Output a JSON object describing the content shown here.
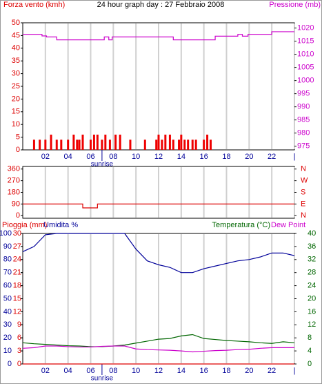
{
  "chart_data": [
    {
      "type": "line",
      "title": "24 hour graph day : 27 Febbraio 2008",
      "xlim": [
        0,
        24
      ],
      "xticks": [
        {
          "value": 2,
          "label": "02"
        },
        {
          "value": 4,
          "label": "04"
        },
        {
          "value": 6,
          "label": "06"
        },
        {
          "value": 8,
          "label": "08"
        },
        {
          "value": 10,
          "label": "10"
        },
        {
          "value": 12,
          "label": "12"
        },
        {
          "value": 14,
          "label": "14"
        },
        {
          "value": 16,
          "label": "16"
        },
        {
          "value": 18,
          "label": "18"
        },
        {
          "value": 20,
          "label": "20"
        },
        {
          "value": 22,
          "label": "22"
        },
        {
          "value": 24,
          "label": "|"
        }
      ],
      "annotation": {
        "text": "sunrise",
        "x": 7
      },
      "axes": [
        {
          "label": "Forza vento (kmh)",
          "color": "#dd0000",
          "side": "left",
          "lim": [
            0,
            50
          ],
          "ticks": [
            0,
            5,
            10,
            15,
            20,
            25,
            30,
            35,
            40,
            45,
            50
          ]
        },
        {
          "label": "Pressione (mb)",
          "color": "#cc00cc",
          "side": "right",
          "lim": [
            973.6,
            1022
          ],
          "ticks": [
            975,
            980,
            985,
            990,
            995,
            1000,
            1005,
            1010,
            1015,
            1020
          ]
        }
      ],
      "series": [
        {
          "type": "bar",
          "axis": 0,
          "color": "#ee0000",
          "x": [
            1,
            1.5,
            2,
            2.5,
            3,
            3.4,
            4,
            4.5,
            4.8,
            5,
            5.3,
            6,
            6.3,
            6.6,
            7,
            7.3,
            7.7,
            8.2,
            8.6,
            9.5,
            10.8,
            11.8,
            12,
            12.3,
            12.6,
            13,
            13.3,
            13.8,
            14,
            14.3,
            14.6,
            15,
            15.3,
            16,
            16.3,
            16.6
          ],
          "values": [
            4,
            4,
            4,
            6,
            4,
            4,
            4,
            6,
            4,
            4,
            6,
            4,
            6,
            6,
            4,
            6,
            4,
            6,
            6,
            4,
            4,
            4,
            6,
            4,
            6,
            6,
            4,
            4,
            6,
            4,
            4,
            4,
            4,
            4,
            6,
            4
          ]
        },
        {
          "type": "step",
          "axis": 1,
          "color": "#cc00cc",
          "x": [
            0,
            1.7,
            2.1,
            3,
            7.2,
            7.6,
            7.9,
            13.3,
            17,
            19,
            19.4,
            19.9,
            22,
            24
          ],
          "values": [
            1017.6,
            1017.0,
            1016.6,
            1015.5,
            1016.6,
            1015.5,
            1016.6,
            1015.5,
            1016.9,
            1017.6,
            1016.9,
            1017.6,
            1018.6,
            1018.6
          ]
        }
      ]
    },
    {
      "type": "line",
      "xlim": [
        0,
        24
      ],
      "xticks": [
        2,
        4,
        6,
        8,
        10,
        12,
        14,
        16,
        18,
        20,
        22,
        24
      ],
      "axes": [
        {
          "color": "#dd0000",
          "side": "left",
          "lim": [
            -20,
            380
          ],
          "ticks": [
            0,
            90,
            180,
            270,
            360
          ]
        },
        {
          "color": "#dd0000",
          "side": "right",
          "lim": [
            -20,
            380
          ],
          "ticks": [
            {
              "value": 0,
              "label": "N"
            },
            {
              "value": 90,
              "label": "E"
            },
            {
              "value": 180,
              "label": "S"
            },
            {
              "value": 270,
              "label": "W"
            },
            {
              "value": 360,
              "label": "N"
            }
          ]
        }
      ],
      "series": [
        {
          "type": "step",
          "axis": 0,
          "color": "#dd0000",
          "x": [
            0,
            5.3,
            6.6,
            24
          ],
          "values": [
            90,
            60,
            90,
            90
          ]
        }
      ]
    },
    {
      "type": "line",
      "xlim": [
        0,
        24
      ],
      "xticks": [
        {
          "value": 2,
          "label": "02"
        },
        {
          "value": 4,
          "label": "04"
        },
        {
          "value": 6,
          "label": "06"
        },
        {
          "value": 8,
          "label": "08"
        },
        {
          "value": 10,
          "label": "10"
        },
        {
          "value": 12,
          "label": "12"
        },
        {
          "value": 14,
          "label": "14"
        },
        {
          "value": 16,
          "label": "16"
        },
        {
          "value": 18,
          "label": "18"
        },
        {
          "value": 20,
          "label": "20"
        },
        {
          "value": 22,
          "label": "22"
        },
        {
          "value": 24,
          "label": "|"
        }
      ],
      "annotation": {
        "text": "sunrise",
        "x": 7
      },
      "axes": [
        {
          "label": "Pioggia (mm)",
          "color": "#dd0000",
          "side": "left",
          "lim": [
            0,
            30
          ],
          "ticks": [
            0,
            3,
            6,
            9,
            12,
            15,
            18,
            21,
            24,
            27,
            30
          ]
        },
        {
          "label": "Umidita %",
          "color": "#000099",
          "side": "left",
          "lim": [
            0,
            100
          ],
          "ticks": [
            0,
            10,
            20,
            30,
            40,
            50,
            60,
            70,
            80,
            90,
            100
          ]
        },
        {
          "label": "Temperatura (°C)",
          "color": "#006600",
          "side": "right",
          "lim": [
            0,
            40
          ],
          "ticks": [
            0,
            4,
            8,
            12,
            16,
            20,
            24,
            28,
            32,
            36,
            40
          ]
        }
      ],
      "x": [
        0,
        1,
        2,
        3,
        4,
        5,
        6,
        7,
        8,
        9,
        10,
        11,
        12,
        13,
        14,
        15,
        16,
        17,
        18,
        19,
        20,
        21,
        22,
        23,
        24
      ],
      "series": [
        {
          "type": "line",
          "axis": 1,
          "color": "#000099",
          "values": [
            86,
            90,
            99,
            100,
            100,
            100,
            100,
            100,
            100,
            100,
            88,
            79,
            76,
            74,
            70,
            70,
            73,
            75,
            77,
            79,
            80,
            82,
            85,
            85,
            83
          ]
        },
        {
          "type": "line",
          "axis": 2,
          "color": "#006600",
          "values": [
            6.5,
            6.2,
            6.0,
            5.8,
            5.6,
            5.5,
            5.3,
            5.3,
            5.5,
            5.8,
            6.4,
            7.0,
            7.6,
            7.8,
            8.6,
            9.0,
            7.8,
            7.5,
            7.2,
            7.0,
            6.8,
            6.5,
            6.3,
            6.8,
            6.5
          ]
        },
        {
          "type": "line",
          "axis": 2,
          "name": "Dew Point",
          "color": "#cc00cc",
          "values": [
            4.8,
            5.0,
            5.5,
            5.5,
            5.3,
            5.2,
            5.2,
            5.4,
            5.5,
            5.5,
            4.6,
            4.4,
            4.3,
            4.2,
            4.0,
            3.7,
            3.9,
            4.1,
            4.2,
            4.4,
            4.5,
            4.8,
            5.0,
            5.0,
            5.0
          ]
        },
        {
          "type": "line",
          "axis": 0,
          "color": "#dd0000",
          "values": [
            0,
            0,
            0,
            0,
            0,
            0,
            0,
            0,
            0,
            0,
            0,
            0,
            0,
            0,
            0,
            0,
            0,
            0,
            0,
            0,
            0,
            0,
            0,
            0,
            0
          ]
        }
      ]
    }
  ]
}
